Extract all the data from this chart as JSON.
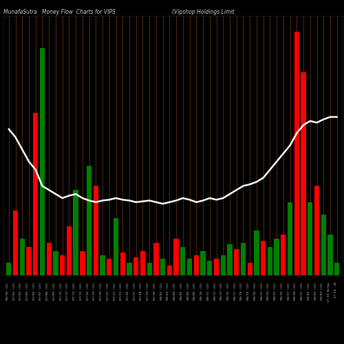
{
  "title1": "MunafaSutra   Money Flow  Charts for VIPS",
  "title2": "(Vipshop Holdings Limit",
  "background_color": "#000000",
  "bar_colors": [
    "green",
    "red",
    "green",
    "red",
    "red",
    "green",
    "red",
    "green",
    "red",
    "red",
    "green",
    "red",
    "green",
    "red",
    "green",
    "red",
    "green",
    "red",
    "green",
    "red",
    "red",
    "green",
    "red",
    "green",
    "red",
    "red",
    "green",
    "green",
    "red",
    "green",
    "green",
    "red",
    "green",
    "green",
    "red",
    "green",
    "red",
    "green",
    "red",
    "green",
    "green",
    "red",
    "green",
    "red",
    "red",
    "green",
    "red",
    "green",
    "green",
    "green"
  ],
  "bar_heights": [
    1.5,
    8.0,
    4.5,
    3.5,
    20.0,
    28.0,
    4.0,
    3.0,
    2.5,
    6.0,
    10.5,
    3.0,
    13.5,
    11.0,
    2.5,
    2.0,
    7.0,
    2.8,
    1.5,
    2.2,
    3.0,
    1.5,
    4.0,
    2.0,
    1.2,
    4.5,
    3.5,
    2.0,
    2.5,
    3.0,
    1.8,
    2.0,
    2.5,
    3.8,
    3.2,
    4.0,
    1.5,
    5.5,
    4.2,
    3.5,
    4.5,
    5.0,
    9.0,
    30.0,
    25.0,
    9.0,
    11.0,
    7.5,
    5.0,
    1.5
  ],
  "line_values": [
    18.0,
    17.0,
    15.5,
    14.0,
    13.0,
    11.0,
    10.5,
    10.0,
    9.5,
    9.8,
    10.0,
    9.5,
    9.2,
    9.0,
    9.2,
    9.3,
    9.5,
    9.3,
    9.2,
    9.0,
    9.1,
    9.2,
    9.0,
    8.8,
    9.0,
    9.2,
    9.5,
    9.3,
    9.0,
    9.2,
    9.5,
    9.3,
    9.5,
    10.0,
    10.5,
    11.0,
    11.2,
    11.5,
    12.0,
    13.0,
    14.0,
    15.0,
    16.0,
    17.5,
    18.5,
    19.0,
    18.8,
    19.2,
    19.5,
    19.5
  ],
  "labels": [
    "06/30 (12)",
    "07/01 (21)",
    "07/02 (21)",
    "07/05 (21)",
    "07/06 (21)",
    "07/07 (21)",
    "07/08 (21)",
    "07/09 (21)",
    "07/12 (21)",
    "07/13 (21)",
    "07/14 (21)",
    "07/15 (21)",
    "07/16 (21)",
    "07/19 (21)",
    "07/20 (21)",
    "07/21 (21)",
    "07/22 (21)",
    "07/23 (21)",
    "07/26 (21)",
    "07/27 (21)",
    "07/28 (21)",
    "07/29 (21)",
    "07/30 (21)",
    "08/02 (21)",
    "08/03 (21)",
    "08/04 (21)",
    "08/05 (21)",
    "08/06 (21)",
    "08/09 (21)",
    "08/10 (21)",
    "08/11 (21)",
    "08/12 (21)",
    "08/13 (21)",
    "08/16 (21)",
    "08/17 (21)",
    "08/18 (21)",
    "08/19 (21)",
    "08/20 (21)",
    "08/23 (21)",
    "08/24 (21)",
    "08/25 (21)",
    "08/26 (21)",
    "08/27 (21)",
    "08/30 (21)",
    "08/31 (21)",
    "09/01 (21)",
    "09/02 (21)",
    "09/03 (21)",
    "17:34 Delay",
    "17:24 .35"
  ],
  "grid_color": "#6B3A10",
  "line_color": "#ffffff",
  "title_color": "#cccccc",
  "bar_width": 0.75,
  "ylim_max": 32,
  "figsize": [
    5.0,
    5.0
  ],
  "dpi": 100
}
